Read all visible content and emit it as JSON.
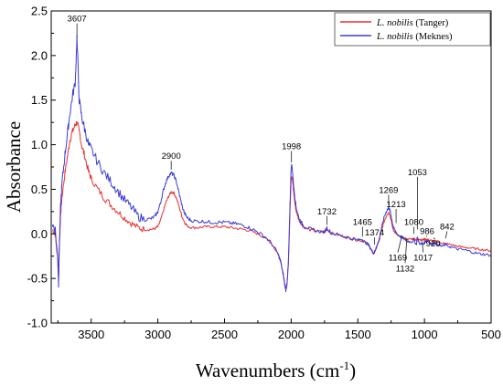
{
  "chart_data": {
    "type": "line",
    "xlabel": "Wavenumbers (cm",
    "xlabel_sup": "-1",
    "xlabel_close": ")",
    "ylabel": "Absorbance",
    "xlim": [
      3800,
      500
    ],
    "ylim": [
      -1.0,
      2.5
    ],
    "x_reversed": true,
    "grid": false,
    "legend_position": "top-right",
    "xticks": [
      3500,
      3000,
      2500,
      2000,
      1500,
      1000,
      500
    ],
    "yticks": [
      -1.0,
      -0.5,
      0.0,
      0.5,
      1.0,
      1.5,
      2.0,
      2.5
    ],
    "xtick_labels": [
      "3500",
      "3000",
      "2500",
      "2000",
      "1500",
      "1000",
      "500"
    ],
    "ytick_labels": [
      "-1.0",
      "-0.5",
      "0.0",
      "0.5",
      "1.0",
      "1.5",
      "2.0",
      "2.5"
    ],
    "series": [
      {
        "name_italic": "L. nobilis",
        "name_rest": " (Tanger)",
        "color": "#e8302f",
        "noise": 0.03,
        "x": [
          3790,
          3770,
          3750,
          3745,
          3740,
          3730,
          3720,
          3700,
          3680,
          3660,
          3640,
          3620,
          3607,
          3590,
          3570,
          3550,
          3520,
          3500,
          3450,
          3400,
          3350,
          3300,
          3250,
          3200,
          3150,
          3100,
          3050,
          3020,
          3000,
          2980,
          2960,
          2940,
          2920,
          2900,
          2880,
          2860,
          2840,
          2820,
          2800,
          2780,
          2750,
          2700,
          2650,
          2600,
          2550,
          2500,
          2450,
          2400,
          2350,
          2300,
          2250,
          2200,
          2150,
          2100,
          2080,
          2060,
          2050,
          2040,
          2030,
          2020,
          2010,
          2000,
          1995,
          1990,
          1980,
          1970,
          1960,
          1940,
          1920,
          1900,
          1850,
          1800,
          1750,
          1732,
          1700,
          1650,
          1600,
          1550,
          1500,
          1465,
          1450,
          1420,
          1400,
          1380,
          1374,
          1360,
          1340,
          1320,
          1300,
          1280,
          1269,
          1260,
          1250,
          1240,
          1230,
          1213,
          1200,
          1169,
          1150,
          1132,
          1100,
          1080,
          1060,
          1053,
          1040,
          1017,
          1000,
          986,
          960,
          940,
          920,
          900,
          870,
          842,
          800,
          750,
          700,
          650,
          600,
          550,
          500
        ],
        "y": [
          0.05,
          0.0,
          -0.3,
          -0.5,
          -0.2,
          0.2,
          0.4,
          0.65,
          0.85,
          1.05,
          1.15,
          1.22,
          1.25,
          1.15,
          0.98,
          0.88,
          0.7,
          0.62,
          0.5,
          0.4,
          0.32,
          0.25,
          0.18,
          0.12,
          0.07,
          0.05,
          0.05,
          0.06,
          0.08,
          0.15,
          0.25,
          0.35,
          0.42,
          0.47,
          0.46,
          0.4,
          0.3,
          0.2,
          0.13,
          0.09,
          0.07,
          0.07,
          0.08,
          0.08,
          0.08,
          0.08,
          0.07,
          0.06,
          0.05,
          0.03,
          0.0,
          -0.04,
          -0.1,
          -0.22,
          -0.3,
          -0.45,
          -0.55,
          -0.62,
          -0.55,
          -0.3,
          0.2,
          0.62,
          0.65,
          0.6,
          0.45,
          0.32,
          0.24,
          0.15,
          0.1,
          0.07,
          0.04,
          0.03,
          0.02,
          0.05,
          0.01,
          -0.01,
          -0.03,
          -0.05,
          -0.07,
          -0.08,
          -0.09,
          -0.12,
          -0.18,
          -0.22,
          -0.2,
          -0.15,
          -0.08,
          0.05,
          0.15,
          0.22,
          0.24,
          0.22,
          0.15,
          0.08,
          0.03,
          0.0,
          -0.02,
          -0.04,
          -0.05,
          -0.06,
          -0.06,
          -0.05,
          -0.07,
          -0.04,
          -0.06,
          -0.07,
          -0.06,
          -0.06,
          -0.07,
          -0.08,
          -0.08,
          -0.09,
          -0.1,
          -0.11,
          -0.12,
          -0.14,
          -0.15,
          -0.16,
          -0.17,
          -0.18,
          -0.19
        ]
      },
      {
        "name_italic": "L. nobilis",
        "name_rest": " (Meknes)",
        "color": "#3b3bd9",
        "noise": 0.04,
        "x": [
          3790,
          3770,
          3750,
          3745,
          3740,
          3730,
          3720,
          3700,
          3680,
          3660,
          3640,
          3620,
          3607,
          3590,
          3570,
          3550,
          3520,
          3500,
          3450,
          3400,
          3350,
          3300,
          3250,
          3200,
          3150,
          3100,
          3050,
          3020,
          3000,
          2980,
          2960,
          2940,
          2920,
          2900,
          2880,
          2860,
          2840,
          2820,
          2800,
          2780,
          2750,
          2700,
          2650,
          2600,
          2550,
          2500,
          2450,
          2400,
          2350,
          2300,
          2250,
          2200,
          2150,
          2100,
          2080,
          2060,
          2050,
          2040,
          2030,
          2020,
          2010,
          2000,
          1995,
          1990,
          1980,
          1970,
          1960,
          1940,
          1920,
          1900,
          1850,
          1800,
          1750,
          1732,
          1700,
          1650,
          1600,
          1550,
          1500,
          1465,
          1450,
          1420,
          1400,
          1380,
          1374,
          1360,
          1340,
          1320,
          1300,
          1280,
          1269,
          1260,
          1250,
          1240,
          1230,
          1213,
          1200,
          1169,
          1150,
          1132,
          1100,
          1080,
          1060,
          1053,
          1040,
          1017,
          1000,
          986,
          960,
          940,
          920,
          900,
          870,
          842,
          800,
          750,
          700,
          650,
          600,
          550,
          500
        ],
        "y": [
          0.1,
          0.05,
          -0.3,
          -0.55,
          -0.2,
          0.3,
          0.55,
          0.85,
          1.1,
          1.35,
          1.55,
          1.7,
          2.2,
          1.5,
          1.3,
          1.18,
          1.0,
          0.95,
          0.8,
          0.68,
          0.58,
          0.48,
          0.38,
          0.3,
          0.2,
          0.16,
          0.17,
          0.2,
          0.25,
          0.35,
          0.48,
          0.58,
          0.65,
          0.68,
          0.66,
          0.58,
          0.45,
          0.32,
          0.23,
          0.18,
          0.15,
          0.14,
          0.14,
          0.13,
          0.13,
          0.13,
          0.12,
          0.11,
          0.09,
          0.06,
          0.02,
          -0.03,
          -0.1,
          -0.22,
          -0.3,
          -0.45,
          -0.55,
          -0.63,
          -0.55,
          -0.3,
          0.25,
          0.75,
          0.77,
          0.7,
          0.52,
          0.38,
          0.28,
          0.17,
          0.12,
          0.08,
          0.05,
          0.03,
          0.02,
          0.07,
          0.01,
          -0.01,
          -0.03,
          -0.05,
          -0.07,
          -0.06,
          -0.09,
          -0.12,
          -0.18,
          -0.22,
          -0.2,
          -0.15,
          -0.06,
          0.08,
          0.2,
          0.27,
          0.29,
          0.27,
          0.2,
          0.12,
          0.06,
          0.02,
          -0.01,
          -0.04,
          -0.06,
          -0.08,
          -0.09,
          -0.07,
          -0.12,
          -0.04,
          -0.1,
          -0.12,
          -0.1,
          -0.07,
          -0.1,
          -0.11,
          -0.1,
          -0.12,
          -0.14,
          -0.12,
          -0.15,
          -0.17,
          -0.18,
          -0.2,
          -0.22,
          -0.23,
          -0.24
        ]
      }
    ],
    "annotations": [
      {
        "label": "3607",
        "x": 3607,
        "y": 2.2,
        "ty": 2.38,
        "tx": 3607
      },
      {
        "label": "2900",
        "x": 2900,
        "y": 0.72,
        "ty": 0.84,
        "tx": 2900
      },
      {
        "label": "1998",
        "x": 1998,
        "y": 0.8,
        "ty": 0.95,
        "tx": 1998
      },
      {
        "label": "1732",
        "x": 1732,
        "y": 0.1,
        "ty": 0.22,
        "tx": 1732
      },
      {
        "label": "1465",
        "x": 1465,
        "y": -0.03,
        "ty": 0.1,
        "tx": 1465
      },
      {
        "label": "1374",
        "x": 1374,
        "y": -0.12,
        "ty": -0.02,
        "tx": 1374
      },
      {
        "label": "1269",
        "x": 1269,
        "y": 0.32,
        "ty": 0.46,
        "tx": 1269
      },
      {
        "label": "1213",
        "x": 1213,
        "y": 0.12,
        "ty": 0.3,
        "tx": 1213
      },
      {
        "label": "1080",
        "x": 1080,
        "y": 0.0,
        "ty": 0.1,
        "tx": 1080
      },
      {
        "label": "1053",
        "x": 1053,
        "y": 0.05,
        "ty": 0.66,
        "tx": 1053
      },
      {
        "label": "986",
        "x": 986,
        "y": -0.03,
        "ty": 0.0,
        "tx": 980
      },
      {
        "label": "920",
        "x": 920,
        "y": -0.05,
        "ty": -0.14,
        "tx": 935
      },
      {
        "label": "842",
        "x": 842,
        "y": -0.05,
        "ty": 0.05,
        "tx": 830
      },
      {
        "label": "1169",
        "x": 1169,
        "y": -0.02,
        "ty": -0.3,
        "tx": 1200
      },
      {
        "label": "1017",
        "x": 1017,
        "y": -0.08,
        "ty": -0.3,
        "tx": 1010
      },
      {
        "label": "1132",
        "x": 1132,
        "y": -0.05,
        "ty": -0.42,
        "tx": 1145
      }
    ]
  }
}
